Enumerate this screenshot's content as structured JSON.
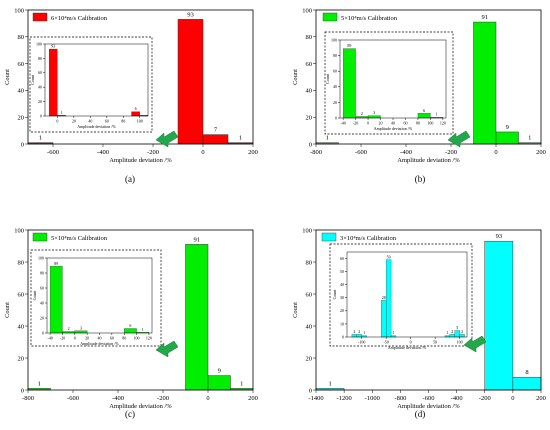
{
  "chart_data": [
    {
      "panel_label": "(a)",
      "type": "bar",
      "color": "#ff0000",
      "legend": "6×10⁴m/s Calibration",
      "xlabel": "Amplitude deviation /%",
      "ylabel": "Count",
      "xlim": [
        -700,
        200
      ],
      "ylim": [
        0,
        100
      ],
      "xticks": [
        -600,
        -400,
        -200,
        0,
        200
      ],
      "yticks": [
        0,
        20,
        40,
        60,
        80,
        100
      ],
      "bars": [
        {
          "x0": -700,
          "x1": -600,
          "value": 1,
          "label": "1"
        },
        {
          "x0": -100,
          "x1": 0,
          "value": 93,
          "label": "93"
        },
        {
          "x0": 0,
          "x1": 100,
          "value": 7,
          "label": "7"
        },
        {
          "x0": 100,
          "x1": 200,
          "value": 1,
          "label": "1"
        }
      ],
      "inset": {
        "xlabel": "Amplitude deviation /%",
        "ylabel": "Count",
        "xlim": [
          -15,
          110
        ],
        "ylim": [
          0,
          100
        ],
        "xticks": [
          0,
          20,
          40,
          60,
          80,
          100
        ],
        "yticks": [
          0,
          20,
          40,
          60,
          80,
          100
        ],
        "bars": [
          {
            "x0": -10,
            "x1": 0,
            "value": 93,
            "label": "93"
          },
          {
            "x0": 0,
            "x1": 10,
            "value": 1,
            "label": "1"
          },
          {
            "x0": 90,
            "x1": 100,
            "value": 6,
            "label": "6"
          },
          {
            "x0": 100,
            "x1": 110,
            "value": 1,
            "label": ""
          }
        ]
      }
    },
    {
      "panel_label": "(b)",
      "type": "bar",
      "color": "#00ee00",
      "legend": "5×10⁴m/s Calibration",
      "xlabel": "Amplitude deviation /%",
      "ylabel": "Count",
      "xlim": [
        -800,
        200
      ],
      "ylim": [
        0,
        100
      ],
      "xticks": [
        -800,
        -600,
        -400,
        -200,
        0,
        200
      ],
      "yticks": [
        0,
        20,
        40,
        60,
        80,
        100
      ],
      "bars": [
        {
          "x0": -800,
          "x1": -700,
          "value": 1,
          "label": "1"
        },
        {
          "x0": -100,
          "x1": 0,
          "value": 91,
          "label": "91"
        },
        {
          "x0": 0,
          "x1": 100,
          "value": 9,
          "label": "9"
        },
        {
          "x0": 100,
          "x1": 200,
          "value": 1,
          "label": "1"
        }
      ],
      "inset": {
        "xlabel": "Amplitude deviation /%",
        "ylabel": "Count",
        "xlim": [
          -45,
          125
        ],
        "ylim": [
          0,
          100
        ],
        "xticks": [
          -40,
          -20,
          0,
          20,
          40,
          60,
          80,
          100,
          120
        ],
        "yticks": [
          0,
          20,
          40,
          60,
          80,
          100
        ],
        "bars": [
          {
            "x0": -40,
            "x1": -20,
            "value": 89,
            "label": "89"
          },
          {
            "x0": -20,
            "x1": 0,
            "value": 2,
            "label": "2"
          },
          {
            "x0": 0,
            "x1": 20,
            "value": 3,
            "label": "3"
          },
          {
            "x0": 80,
            "x1": 100,
            "value": 6,
            "label": "6"
          },
          {
            "x0": 100,
            "x1": 120,
            "value": 1,
            "label": "1"
          }
        ]
      }
    },
    {
      "panel_label": "(c)",
      "type": "bar",
      "color": "#00ee00",
      "legend": "5×10⁴m/s Calibration",
      "xlabel": "Amplitude deviation /%",
      "ylabel": "Count",
      "xlim": [
        -800,
        200
      ],
      "ylim": [
        0,
        100
      ],
      "xticks": [
        -800,
        -600,
        -400,
        -200,
        0,
        200
      ],
      "yticks": [
        0,
        20,
        40,
        60,
        80,
        100
      ],
      "bars": [
        {
          "x0": -800,
          "x1": -700,
          "value": 1,
          "label": "1"
        },
        {
          "x0": -100,
          "x1": 0,
          "value": 91,
          "label": "91"
        },
        {
          "x0": 0,
          "x1": 100,
          "value": 9,
          "label": "9"
        },
        {
          "x0": 100,
          "x1": 200,
          "value": 1,
          "label": "1"
        }
      ],
      "inset": {
        "xlabel": "Amplitude deviation /%",
        "ylabel": "Count",
        "xlim": [
          -45,
          125
        ],
        "ylim": [
          0,
          100
        ],
        "xticks": [
          -40,
          -20,
          0,
          20,
          40,
          60,
          80,
          100,
          120
        ],
        "yticks": [
          0,
          20,
          40,
          60,
          80,
          100
        ],
        "bars": [
          {
            "x0": -40,
            "x1": -20,
            "value": 89,
            "label": "89"
          },
          {
            "x0": -20,
            "x1": 0,
            "value": 2,
            "label": "2"
          },
          {
            "x0": 0,
            "x1": 20,
            "value": 3,
            "label": "3"
          },
          {
            "x0": 80,
            "x1": 100,
            "value": 6,
            "label": "6"
          },
          {
            "x0": 100,
            "x1": 120,
            "value": 1,
            "label": "1"
          }
        ]
      }
    },
    {
      "panel_label": "(d)",
      "type": "bar",
      "color": "#00ffff",
      "legend": "3×10⁴m/s Calibration",
      "xlabel": "Amplitude deviation /%",
      "ylabel": "Count",
      "xlim": [
        -1400,
        200
      ],
      "ylim": [
        0,
        100
      ],
      "xticks": [
        -1400,
        -1200,
        -1000,
        -800,
        -600,
        -400,
        -200,
        0,
        200
      ],
      "yticks": [
        0,
        20,
        40,
        60,
        80,
        100
      ],
      "bars": [
        {
          "x0": -1400,
          "x1": -1200,
          "value": 1,
          "label": "1"
        },
        {
          "x0": -200,
          "x1": 0,
          "value": 93,
          "label": "93"
        },
        {
          "x0": 0,
          "x1": 200,
          "value": 8,
          "label": "8"
        }
      ],
      "inset": {
        "xlabel": "Amplitude deviation /%",
        "ylabel": "Count",
        "xlim": [
          -130,
          115
        ],
        "ylim": [
          0,
          65
        ],
        "xticks": [
          -100,
          -50,
          0,
          50,
          100
        ],
        "yticks": [
          0,
          10,
          20,
          30,
          40,
          50,
          60
        ],
        "bars": [
          {
            "x0": -120,
            "x1": -110,
            "value": 2,
            "label": "2"
          },
          {
            "x0": -110,
            "x1": -100,
            "value": 2,
            "label": "2"
          },
          {
            "x0": -100,
            "x1": -90,
            "value": 1,
            "label": "1"
          },
          {
            "x0": -60,
            "x1": -50,
            "value": 28,
            "label": "28"
          },
          {
            "x0": -50,
            "x1": -40,
            "value": 59,
            "label": "59"
          },
          {
            "x0": -40,
            "x1": -30,
            "value": 1,
            "label": "1"
          },
          {
            "x0": 70,
            "x1": 80,
            "value": 1,
            "label": "1"
          },
          {
            "x0": 80,
            "x1": 90,
            "value": 2,
            "label": "2"
          },
          {
            "x0": 90,
            "x1": 100,
            "value": 5,
            "label": "5"
          },
          {
            "x0": 100,
            "x1": 110,
            "value": 2,
            "label": "2"
          }
        ]
      }
    }
  ]
}
